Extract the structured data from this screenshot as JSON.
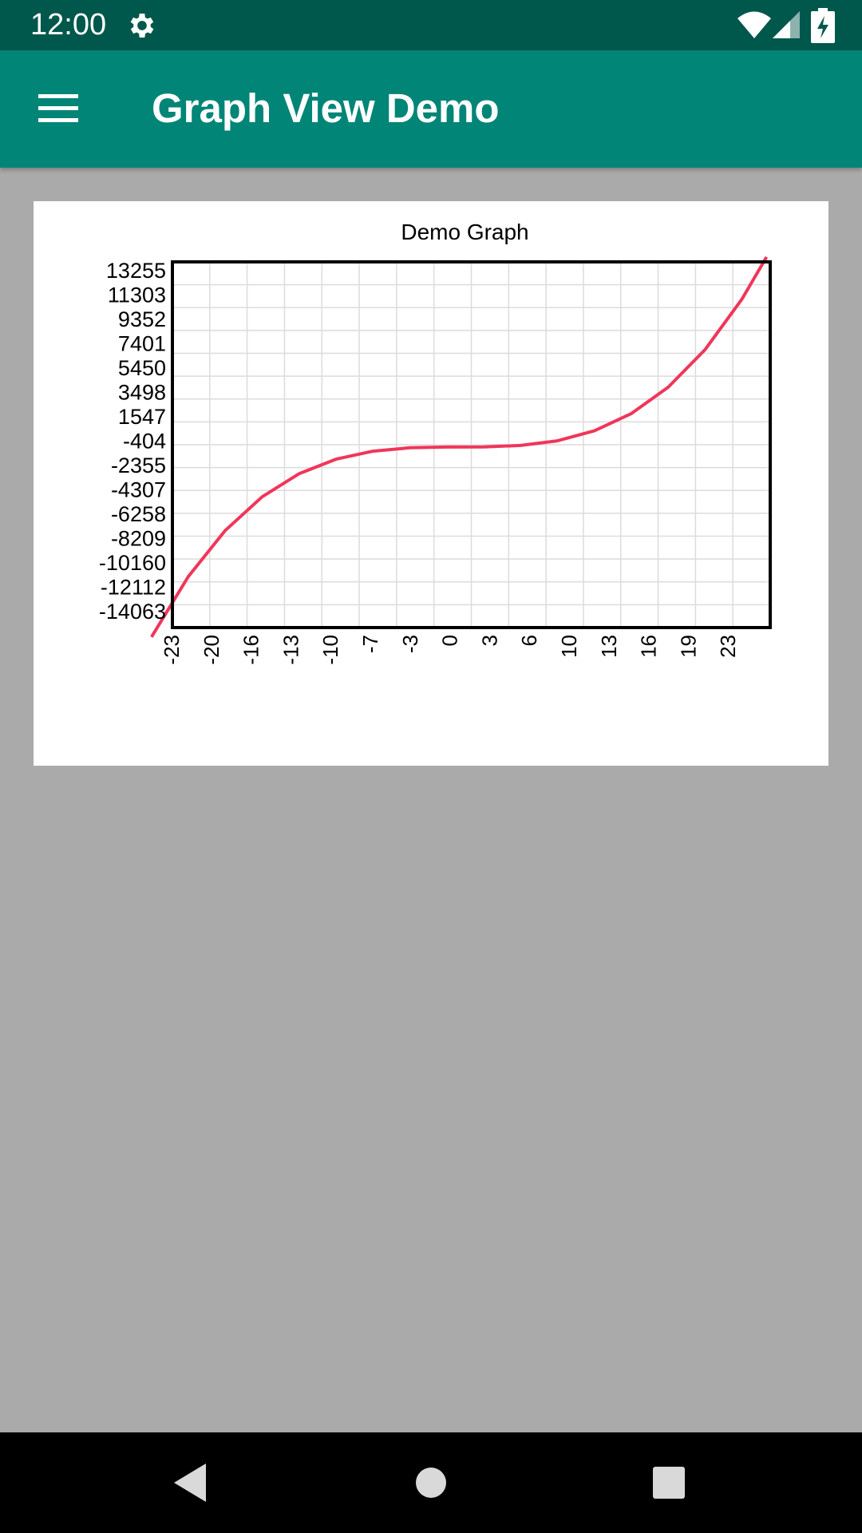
{
  "status_bar": {
    "time": "12:00",
    "icons": [
      "gear-icon",
      "wifi-icon",
      "cell-signal-icon",
      "battery-charging-icon"
    ]
  },
  "app_bar": {
    "title": "Graph View Demo",
    "menu_icon": "hamburger-menu-icon"
  },
  "colors": {
    "status_bar": "#00574b",
    "app_bar": "#008577",
    "background": "#aaaaaa",
    "series_line": "#f0365a",
    "grid": "#dcdcdc",
    "frame": "#000000"
  },
  "chart_data": {
    "type": "line",
    "title": "Demo Graph",
    "xlabel": "",
    "ylabel": "",
    "x_ticks": [
      "-23",
      "-20",
      "-16",
      "-13",
      "-10",
      "-7",
      "-3",
      "0",
      "3",
      "6",
      "10",
      "13",
      "16",
      "19",
      "23"
    ],
    "y_ticks": [
      "13255",
      "11303",
      "9352",
      "7401",
      "5450",
      "3498",
      "1547",
      "-404",
      "-2355",
      "-4307",
      "-6258",
      "-8209",
      "-10160",
      "-12112",
      "-14063"
    ],
    "xlim": [
      -23.3,
      25.3
    ],
    "ylim": [
      -14063,
      13255
    ],
    "grid": true,
    "legend": "none",
    "series": [
      {
        "color": "#f0365a",
        "x": [
          -25,
          -22,
          -19,
          -16,
          -13,
          -10,
          -7,
          -4,
          -1,
          2,
          5,
          8,
          11,
          14,
          17,
          20,
          23,
          25
        ],
        "y": [
          -15625,
          -10648,
          -6859,
          -4096,
          -2197,
          -1000,
          -343,
          -64,
          -1,
          8,
          125,
          512,
          1331,
          2744,
          4913,
          8000,
          12167,
          15625
        ]
      }
    ]
  },
  "nav_bar": {
    "back_icon": "back-triangle-icon",
    "home_icon": "home-circle-icon",
    "recents_icon": "recents-square-icon"
  }
}
